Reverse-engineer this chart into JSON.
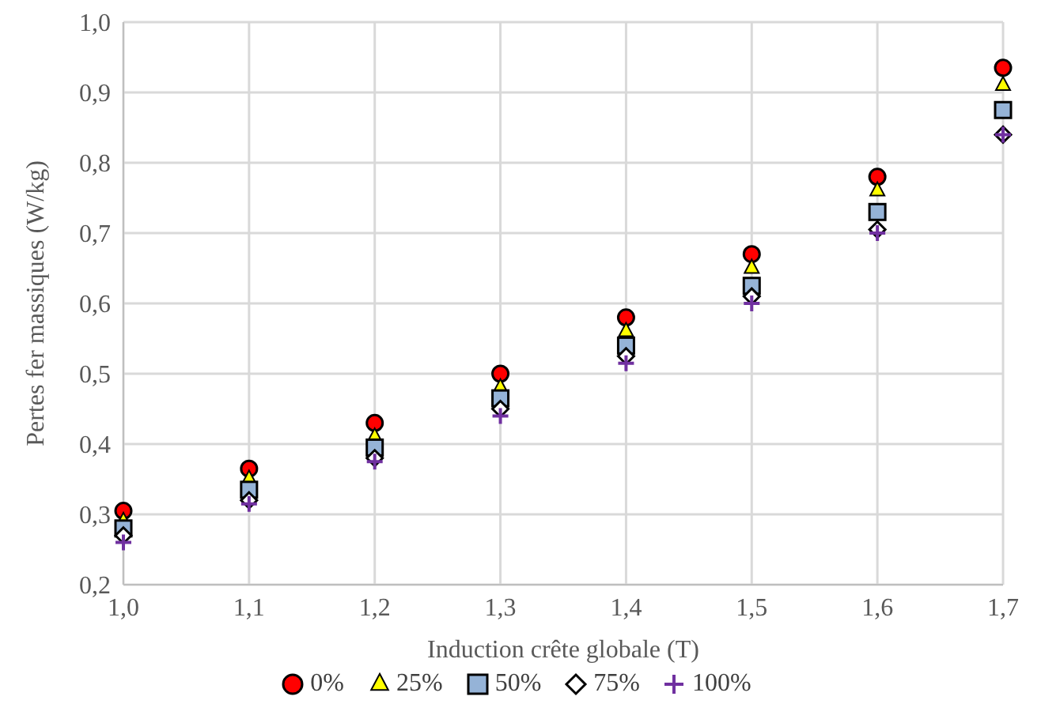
{
  "chart_data": {
    "type": "scatter",
    "xlabel": "Induction crête globale (T)",
    "ylabel": "Pertes fer massiques (W/kg)",
    "x": [
      1.0,
      1.1,
      1.2,
      1.3,
      1.4,
      1.5,
      1.6,
      1.7
    ],
    "series": [
      {
        "name": "0%",
        "color": "#ff0000",
        "marker": "circle",
        "values": [
          0.305,
          0.365,
          0.43,
          0.5,
          0.58,
          0.67,
          0.78,
          0.935
        ]
      },
      {
        "name": "25%",
        "color": "#ffff00",
        "marker": "triangle",
        "values": [
          0.29,
          0.35,
          0.41,
          0.48,
          0.56,
          0.65,
          0.76,
          0.91
        ]
      },
      {
        "name": "50%",
        "color": "#95b3d7",
        "marker": "square",
        "values": [
          0.28,
          0.335,
          0.395,
          0.465,
          0.54,
          0.625,
          0.73,
          0.875
        ]
      },
      {
        "name": "75%",
        "color": "#ffffff",
        "marker": "diamond",
        "values": [
          0.27,
          0.32,
          0.38,
          0.45,
          0.525,
          0.61,
          0.705,
          0.84
        ]
      },
      {
        "name": "100%",
        "color": "#7030a0",
        "marker": "cross",
        "values": [
          0.26,
          0.315,
          0.375,
          0.44,
          0.515,
          0.6,
          0.7,
          0.84
        ]
      }
    ],
    "xlim": [
      1.0,
      1.7
    ],
    "xticks": [
      {
        "value": 1.0,
        "label": "1,0"
      },
      {
        "value": 1.1,
        "label": "1,1"
      },
      {
        "value": 1.2,
        "label": "1,2"
      },
      {
        "value": 1.3,
        "label": "1,3"
      },
      {
        "value": 1.4,
        "label": "1,4"
      },
      {
        "value": 1.5,
        "label": "1,5"
      },
      {
        "value": 1.6,
        "label": "1,6"
      },
      {
        "value": 1.7,
        "label": "1,7"
      }
    ],
    "ylim": [
      0.2,
      1.0
    ],
    "yticks": [
      {
        "value": 0.2,
        "label": "0,2"
      },
      {
        "value": 0.3,
        "label": "0,3"
      },
      {
        "value": 0.4,
        "label": "0,4"
      },
      {
        "value": 0.5,
        "label": "0,5"
      },
      {
        "value": 0.6,
        "label": "0,6"
      },
      {
        "value": 0.7,
        "label": "0,7"
      },
      {
        "value": 0.8,
        "label": "0,8"
      },
      {
        "value": 0.9,
        "label": "0,9"
      },
      {
        "value": 1.0,
        "label": "1,0"
      }
    ],
    "grid": true,
    "legend": "bottom"
  }
}
